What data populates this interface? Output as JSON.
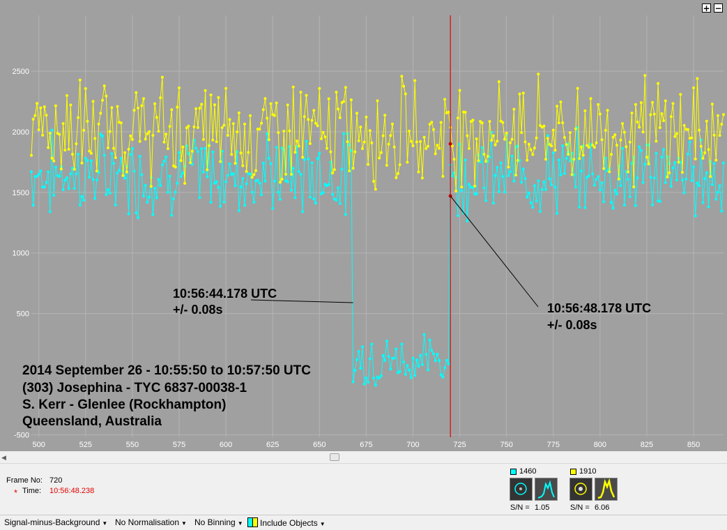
{
  "chart_data": {
    "type": "line",
    "x_range": [
      496,
      866
    ],
    "y_range": [
      -520,
      2960
    ],
    "x_ticks": [
      500,
      525,
      550,
      575,
      600,
      625,
      650,
      675,
      700,
      725,
      750,
      775,
      800,
      825,
      850
    ],
    "y_ticks": [
      -500,
      500,
      1000,
      1500,
      2000,
      2500
    ],
    "grid": true,
    "cursor_frame": 720,
    "series": [
      {
        "color": "#00ffff",
        "x_start": 496,
        "x_end": 866,
        "baseline": 1650,
        "noise": 250,
        "dip": {
          "from": 668,
          "to": 720,
          "level": 120,
          "noise": 170
        }
      },
      {
        "color": "#ffff00",
        "x_start": 496,
        "x_end": 866,
        "baseline": 2000,
        "noise": 320
      }
    ],
    "annotations": [
      {
        "id": "disappear",
        "line1": "10:56:44.178 UTC",
        "line2": "+/- 0.08s",
        "point": [
          668,
          590
        ]
      },
      {
        "id": "reappear",
        "line1": "10:56:48.178 UTC",
        "line2": "+/- 0.08s",
        "point": [
          720,
          1470
        ]
      }
    ],
    "caption": [
      "2014 September 26 - 10:55:50 to 10:57:50 UTC",
      "(303) Josephina - TYC 6837-00038-1",
      "S. Kerr - Glenlee (Rockhampton)",
      "Queensland, Australia"
    ]
  },
  "zoom": {
    "plus": "+",
    "minus": "−"
  },
  "scroll": {
    "left_arrow": "◀"
  },
  "info": {
    "frame_label": "Frame No:",
    "frame_value": "720",
    "time_marker": "*",
    "time_label": "Time:",
    "time_value": "10:56:48.238",
    "obj1": {
      "color": "#00ffff",
      "value": "1460",
      "sn_label": "S/N =",
      "sn_value": "1.05"
    },
    "obj2": {
      "color": "#ffff00",
      "value": "1910",
      "sn_label": "S/N =",
      "sn_value": "6.06"
    }
  },
  "toolbar": {
    "signal": "Signal-minus-Background",
    "normalisation": "No Normalisation",
    "binning": "No Binning",
    "include": "Include Objects"
  }
}
